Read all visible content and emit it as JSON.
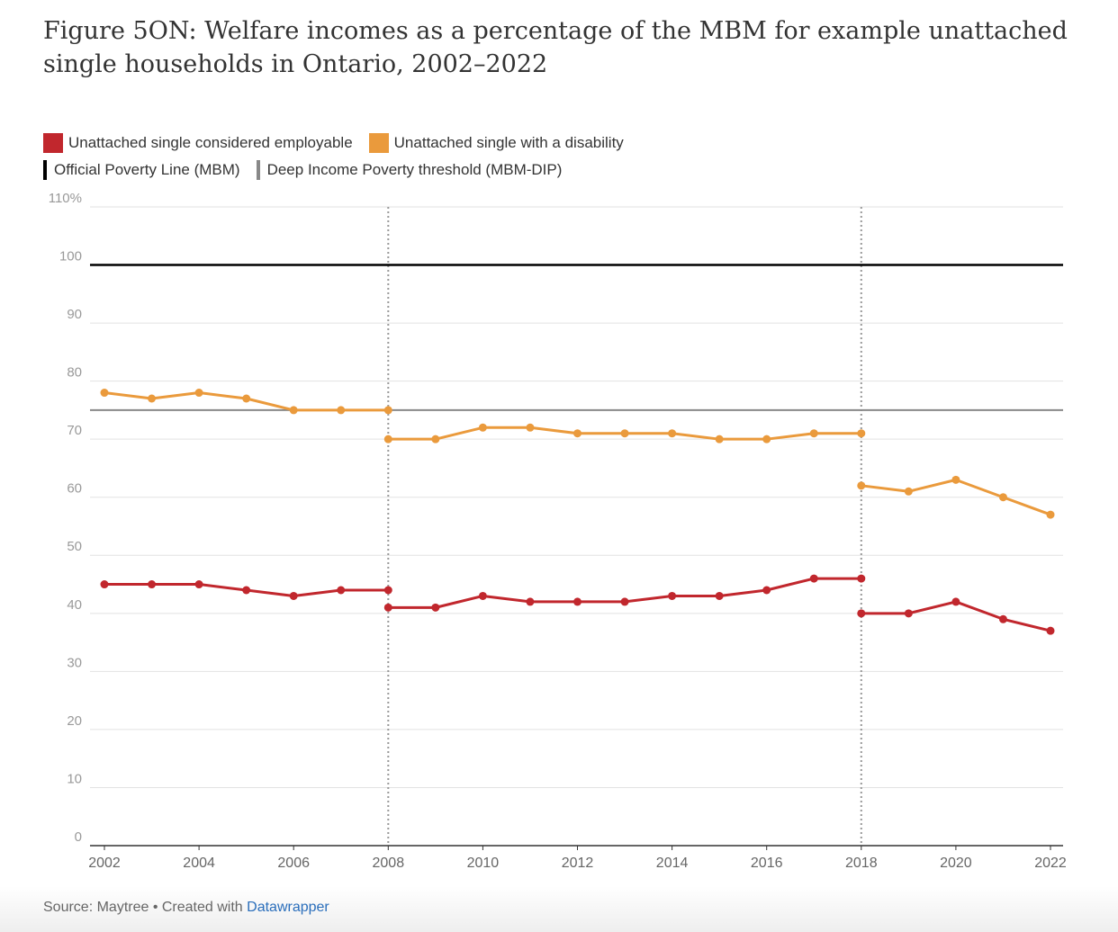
{
  "chart_data": {
    "type": "line",
    "title": "Figure 5ON: Welfare incomes as a percentage of the MBM for example unattached single households in Ontario, 2002–2022",
    "x": [
      2002,
      2003,
      2004,
      2005,
      2006,
      2007,
      2008,
      2008,
      2009,
      2010,
      2011,
      2012,
      2013,
      2014,
      2015,
      2016,
      2017,
      2018,
      2018,
      2019,
      2020,
      2021,
      2022
    ],
    "series": [
      {
        "name": "Unattached single considered employable",
        "color": "#c1272d",
        "values": [
          45,
          45,
          45,
          44,
          43,
          44,
          44,
          41,
          41,
          43,
          42,
          42,
          42,
          43,
          43,
          44,
          46,
          46,
          40,
          40,
          42,
          39,
          37
        ]
      },
      {
        "name": "Unattached single with a disability",
        "color": "#ea9a3c",
        "values": [
          78,
          77,
          78,
          77,
          75,
          75,
          75,
          70,
          70,
          72,
          72,
          71,
          71,
          71,
          70,
          70,
          71,
          71,
          62,
          61,
          63,
          60,
          57
        ]
      }
    ],
    "reference_lines": [
      {
        "name": "Official Poverty Line (MBM)",
        "value": 100,
        "color": "#000000"
      },
      {
        "name": "Deep Income Poverty threshold (MBM-DIP)",
        "value": 75,
        "color": "#888888"
      }
    ],
    "vlines": [
      2008,
      2018
    ],
    "xlim": [
      2002,
      2022
    ],
    "xticks": [
      2002,
      2004,
      2006,
      2008,
      2010,
      2012,
      2014,
      2016,
      2018,
      2020,
      2022
    ],
    "ylim": [
      0,
      110
    ],
    "yticks": [
      0,
      10,
      20,
      30,
      40,
      50,
      60,
      70,
      80,
      90,
      100,
      {
        "value": 110,
        "label": "110%"
      }
    ],
    "grid": true,
    "source": "Source: Maytree • Created with",
    "credit": "Datawrapper"
  }
}
